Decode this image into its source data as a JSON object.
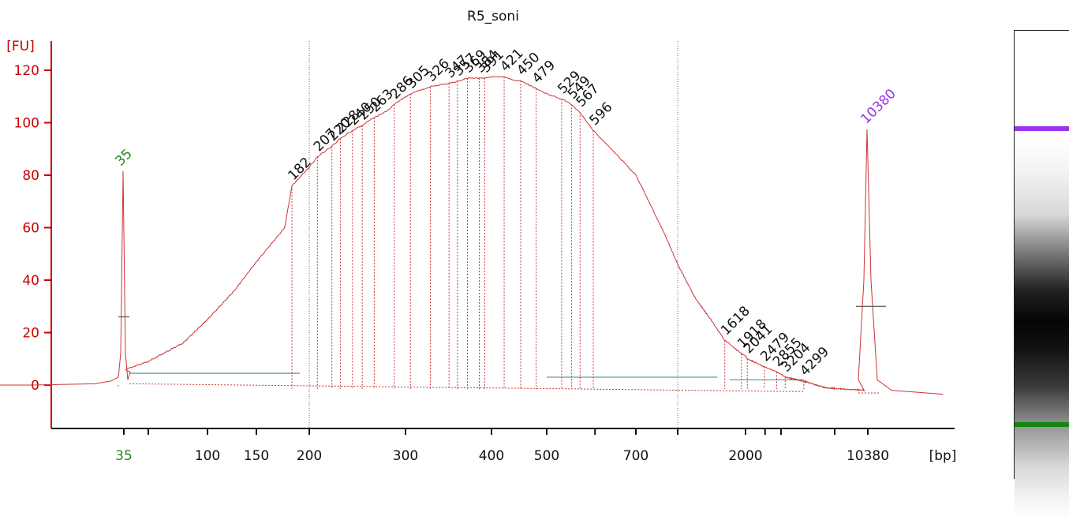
{
  "chart_data": {
    "type": "line",
    "title": "R5_soni",
    "ylabel": "[FU]",
    "xlabel": "[bp]",
    "ylim": [
      -15,
      125
    ],
    "y_ticks": [
      0,
      20,
      40,
      60,
      80,
      100,
      120
    ],
    "x_axis_scale": "migration (non-linear bp ladder)",
    "x_tick_labels": [
      "35",
      "100",
      "150",
      "200",
      "300",
      "400",
      "500",
      "700",
      "2000",
      "10380"
    ],
    "trace_color": "#cc3333",
    "lower_marker": {
      "label": "35",
      "bp": 35,
      "peak_fu": 81.5,
      "color": "#228822"
    },
    "upper_marker": {
      "label": "10380",
      "bp": 10380,
      "peak_fu": 97.5,
      "color": "#9933ee"
    },
    "sample_trace": {
      "name": "R5_soni",
      "points_bp": [
        36,
        50,
        75,
        100,
        125,
        150,
        175,
        182,
        200,
        207,
        220,
        228,
        240,
        250,
        263,
        280,
        286,
        305,
        320,
        330,
        347,
        360,
        369,
        384,
        391,
        400,
        421,
        440,
        450,
        479,
        500,
        529,
        549,
        567,
        596,
        650,
        700,
        800,
        900,
        1000,
        1200,
        1400,
        1618,
        1918,
        2000,
        2041,
        2479,
        2855,
        3204,
        4299,
        6000,
        10000
      ],
      "points_fu": [
        6,
        9,
        16,
        25,
        36,
        47,
        60,
        76,
        83,
        87,
        91,
        94,
        97,
        99,
        102,
        105,
        107,
        111,
        113,
        114,
        115,
        116,
        117,
        117,
        117,
        117.5,
        117.5,
        116,
        116,
        113,
        111,
        109,
        107,
        104,
        97,
        88,
        80,
        68,
        57,
        46,
        33,
        25,
        17,
        12,
        11,
        10,
        7,
        5,
        3,
        1.5,
        -1,
        -2
      ]
    },
    "peaks": [
      {
        "label": "182",
        "bp": 182
      },
      {
        "label": "207",
        "bp": 207
      },
      {
        "label": "220",
        "bp": 220
      },
      {
        "label": "228",
        "bp": 228
      },
      {
        "label": "240",
        "bp": 240
      },
      {
        "label": "250",
        "bp": 250
      },
      {
        "label": "263",
        "bp": 263
      },
      {
        "label": "286",
        "bp": 286
      },
      {
        "label": "305",
        "bp": 305
      },
      {
        "label": "326",
        "bp": 326
      },
      {
        "label": "347",
        "bp": 347
      },
      {
        "label": "357",
        "bp": 357
      },
      {
        "label": "369",
        "bp": 369
      },
      {
        "label": "384",
        "bp": 384
      },
      {
        "label": "391",
        "bp": 391
      },
      {
        "label": "421",
        "bp": 421
      },
      {
        "label": "450",
        "bp": 450
      },
      {
        "label": "479",
        "bp": 479
      },
      {
        "label": "529",
        "bp": 529
      },
      {
        "label": "549",
        "bp": 549
      },
      {
        "label": "567",
        "bp": 567
      },
      {
        "label": "596",
        "bp": 596
      },
      {
        "label": "1618",
        "bp": 1618
      },
      {
        "label": "1918",
        "bp": 1918
      },
      {
        "label": "2041",
        "bp": 2041
      },
      {
        "label": "2479",
        "bp": 2479
      },
      {
        "label": "2855",
        "bp": 2855
      },
      {
        "label": "3204",
        "bp": 3204
      },
      {
        "label": "4299",
        "bp": 4299
      }
    ],
    "region_boundaries_bp": [
      200,
      1000
    ],
    "grid": false,
    "legend": "none"
  },
  "gel": {
    "marker_upper_color": "#9933ee",
    "marker_lower_color": "#118811"
  }
}
